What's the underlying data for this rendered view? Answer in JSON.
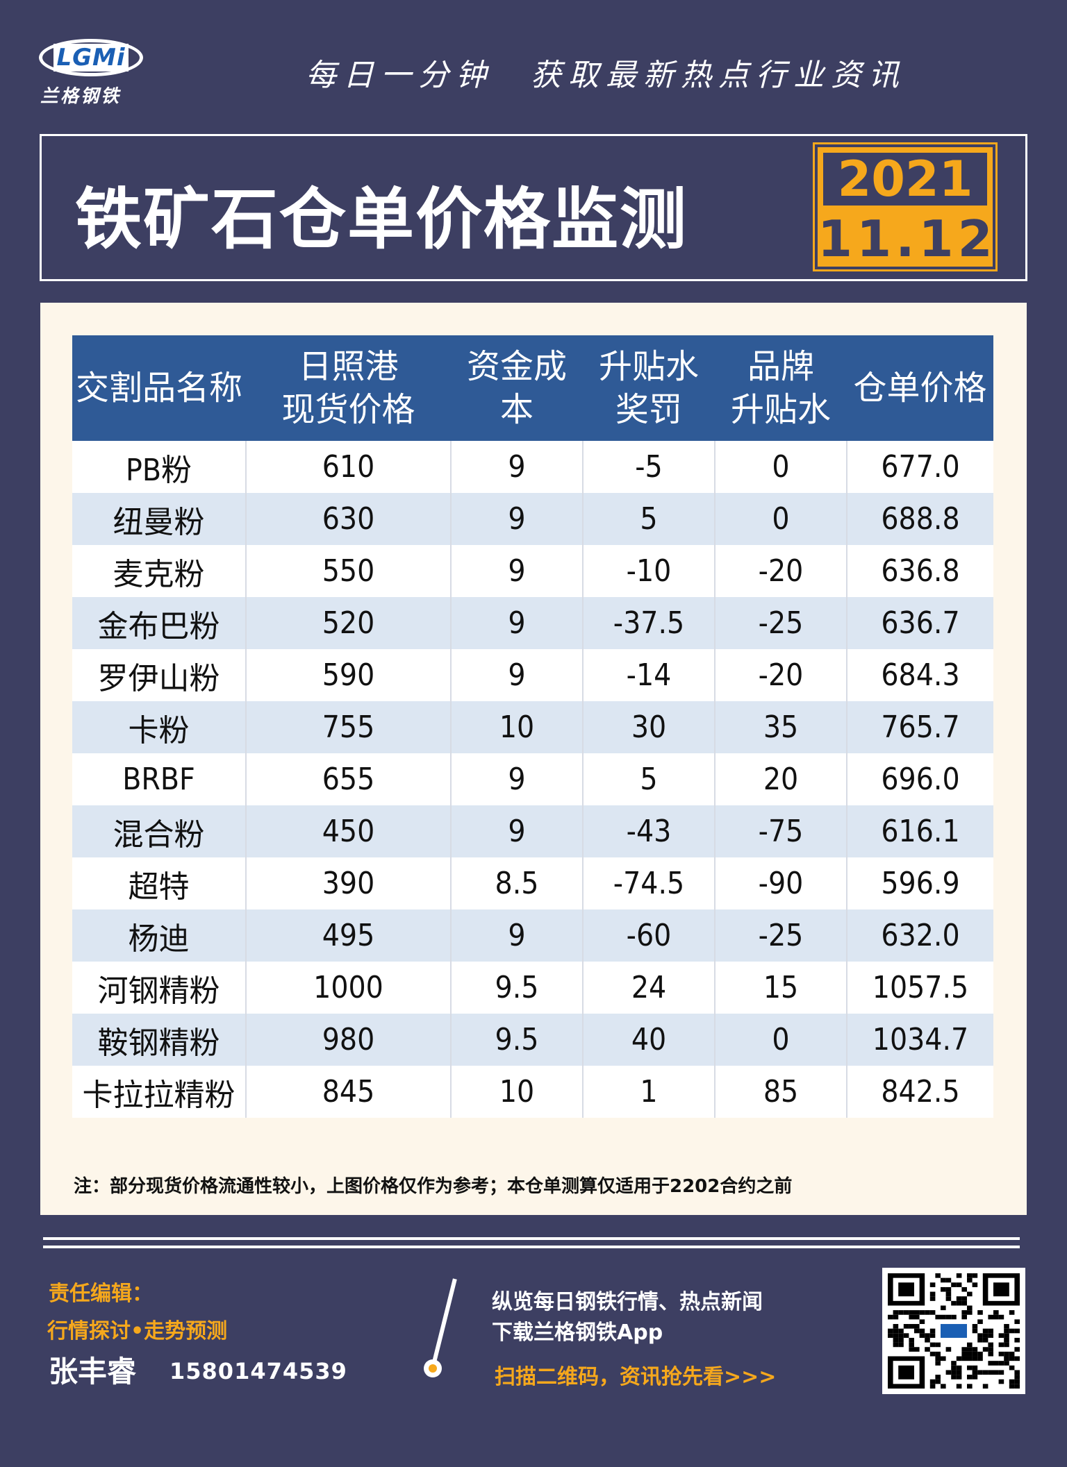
{
  "header": {
    "logo_text": "LGMi",
    "logo_cn": "兰格钢铁",
    "slogan": "每日一分钟　获取最新热点行业资讯",
    "title": "铁矿石仓单价格监测",
    "date_year": "2021",
    "date_md": "11.12"
  },
  "table": {
    "headers": [
      "交割品名称",
      "日照港\n现货价格",
      "资金成本",
      "升贴水\n奖罚",
      "品牌\n升贴水",
      "仓单价格"
    ],
    "rows": [
      [
        "PB粉",
        "610",
        "9",
        "-5",
        "0",
        "677.0"
      ],
      [
        "纽曼粉",
        "630",
        "9",
        "5",
        "0",
        "688.8"
      ],
      [
        "麦克粉",
        "550",
        "9",
        "-10",
        "-20",
        "636.8"
      ],
      [
        "金布巴粉",
        "520",
        "9",
        "-37.5",
        "-25",
        "636.7"
      ],
      [
        "罗伊山粉",
        "590",
        "9",
        "-14",
        "-20",
        "684.3"
      ],
      [
        "卡粉",
        "755",
        "10",
        "30",
        "35",
        "765.7"
      ],
      [
        "BRBF",
        "655",
        "9",
        "5",
        "20",
        "696.0"
      ],
      [
        "混合粉",
        "450",
        "9",
        "-43",
        "-75",
        "616.1"
      ],
      [
        "超特",
        "390",
        "8.5",
        "-74.5",
        "-90",
        "596.9"
      ],
      [
        "杨迪",
        "495",
        "9",
        "-60",
        "-25",
        "632.0"
      ],
      [
        "河钢精粉",
        "1000",
        "9.5",
        "24",
        "15",
        "1057.5"
      ],
      [
        "鞍钢精粉",
        "980",
        "9.5",
        "40",
        "0",
        "1034.7"
      ],
      [
        "卡拉拉精粉",
        "845",
        "10",
        "1",
        "85",
        "842.5"
      ]
    ]
  },
  "note": "注：部分现货价格流通性较小，上图价格仅作为参考；本仓单测算仅适用于2202合约之前",
  "footer": {
    "editor_label": "责任编辑：",
    "editor_sub": "行情探讨•走势预测",
    "editor_name": "张丰睿",
    "editor_phone": "15801474539",
    "promo_line1": "纵览每日钢铁行情、热点新闻",
    "promo_line2": "下载兰格钢铁App",
    "promo_line3": "扫描二维码，资讯抢先看>>>"
  },
  "colors": {
    "background": "#3d3f62",
    "accent": "#f6a81c",
    "table_header": "#2f5a96",
    "row_alt": "#dce6f2",
    "panel": "#fdf6ea"
  }
}
